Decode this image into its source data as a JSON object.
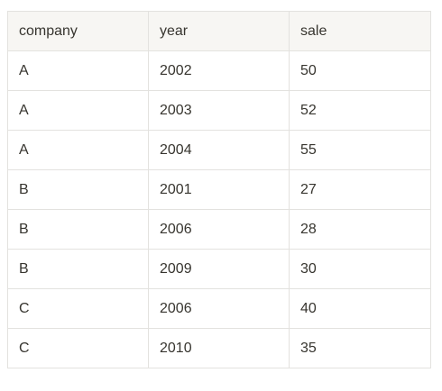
{
  "table": {
    "columns": [
      "company",
      "year",
      "sale"
    ],
    "rows": [
      [
        "A",
        2002,
        50
      ],
      [
        "A",
        2003,
        52
      ],
      [
        "A",
        2004,
        55
      ],
      [
        "B",
        2001,
        27
      ],
      [
        "B",
        2006,
        28
      ],
      [
        "B",
        2009,
        30
      ],
      [
        "C",
        2006,
        40
      ],
      [
        "C",
        2010,
        35
      ]
    ]
  }
}
